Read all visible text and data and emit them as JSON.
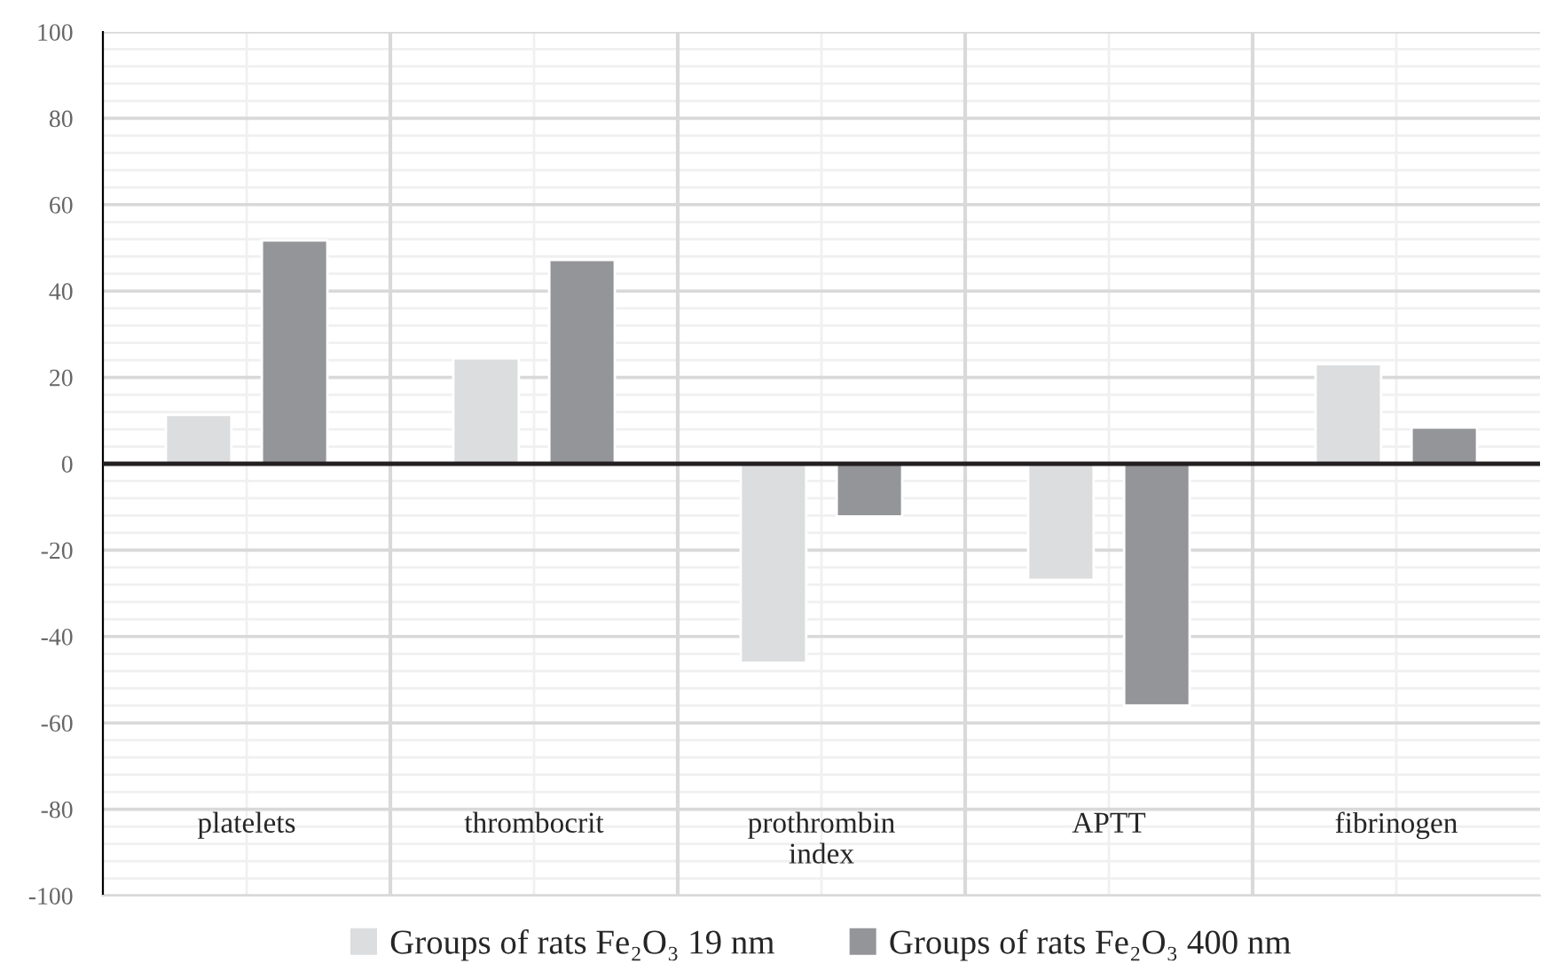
{
  "chart_data": {
    "type": "bar",
    "categories": [
      "platelets",
      "thrombocrit",
      "prothrombin\nindex",
      "APTT",
      "fibrinogen"
    ],
    "series": [
      {
        "name": "Groups of rats Fe₂O₃ 19 nm",
        "color": "#dcddde",
        "values": [
          11.3,
          24.4,
          -46.1,
          -26.9,
          23.1
        ]
      },
      {
        "name": "Groups of rats Fe₂O₃ 400 nm",
        "color": "#949599",
        "values": [
          51.7,
          47.2,
          -12.2,
          -56,
          8.4
        ]
      }
    ],
    "ylim": [
      -100,
      100
    ],
    "yticks": [
      -100,
      -80,
      -60,
      -40,
      -20,
      0,
      20,
      40,
      60,
      80,
      100
    ],
    "grid": true,
    "legend": "bottom"
  }
}
